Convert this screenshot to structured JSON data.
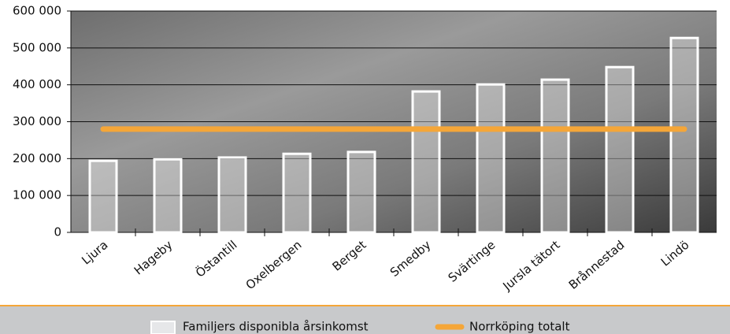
{
  "chart_data": {
    "type": "bar",
    "categories": [
      "Ljura",
      "Hageby",
      "Östantill",
      "Oxelbergen",
      "Berget",
      "Smedby",
      "Svärtinge",
      "Jursla tätort",
      "Brånnestad",
      "Lindö"
    ],
    "series": [
      {
        "name": "Familjers disponibla årsinkomst",
        "type": "bar",
        "color": "#ffffff",
        "values": [
          194000,
          198000,
          203000,
          213000,
          218000,
          382000,
          401000,
          414000,
          448000,
          527000
        ]
      },
      {
        "name": "Norrköping totalt",
        "type": "line",
        "color": "#f5a638",
        "values": [
          280000,
          280000,
          280000,
          280000,
          280000,
          280000,
          280000,
          280000,
          280000,
          280000
        ]
      }
    ],
    "ylim": [
      0,
      600000
    ],
    "yticks": [
      {
        "value": 0,
        "label": "0"
      },
      {
        "value": 100000,
        "label": "100 000"
      },
      {
        "value": 200000,
        "label": "200 000"
      },
      {
        "value": 300000,
        "label": "300 000"
      },
      {
        "value": 400000,
        "label": "400 000"
      },
      {
        "value": 500000,
        "label": "500 000"
      },
      {
        "value": 600000,
        "label": "600 000"
      }
    ],
    "grid": true
  }
}
